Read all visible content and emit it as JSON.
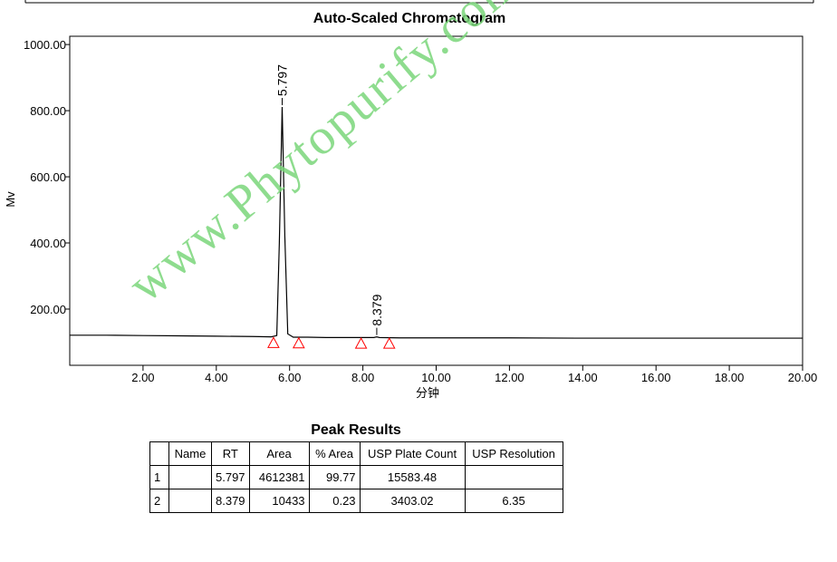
{
  "chart_data": {
    "type": "line",
    "title": "Auto-Scaled Chromatogram",
    "x_label": "分钟",
    "y_label": "Mv",
    "xlim": [
      0,
      20
    ],
    "ylim": [
      30,
      1025
    ],
    "xticks": [
      {
        "value": 2,
        "label": "2.00"
      },
      {
        "value": 4,
        "label": "4.00"
      },
      {
        "value": 6,
        "label": "6.00"
      },
      {
        "value": 8,
        "label": "8.00"
      },
      {
        "value": 10,
        "label": "10.00"
      },
      {
        "value": 12,
        "label": "12.00"
      },
      {
        "value": 14,
        "label": "14.00"
      },
      {
        "value": 16,
        "label": "16.00"
      },
      {
        "value": 18,
        "label": "18.00"
      },
      {
        "value": 20,
        "label": "20.00"
      }
    ],
    "yticks": [
      {
        "value": 200,
        "label": "200.00"
      },
      {
        "value": 400,
        "label": "400.00"
      },
      {
        "value": 600,
        "label": "600.00"
      },
      {
        "value": 800,
        "label": "800.00"
      },
      {
        "value": 1000,
        "label": "1000.00"
      }
    ],
    "x": [
      0,
      1,
      2,
      3,
      4,
      5,
      5.5,
      5.65,
      5.72,
      5.797,
      5.87,
      5.95,
      6.1,
      6.5,
      7,
      8,
      8.3,
      8.379,
      8.45,
      9,
      10,
      12,
      14,
      16,
      18,
      20
    ],
    "series": [
      {
        "color": "#000000",
        "values": [
          121,
          121,
          120,
          119,
          118,
          117,
          116,
          120,
          400,
          811,
          420,
          125,
          115,
          115,
          114,
          114,
          114,
          116,
          114,
          113,
          113,
          113,
          112,
          112,
          112,
          112
        ]
      }
    ],
    "peaks": {
      "x": [
        5.797,
        8.379
      ],
      "y": [
        811,
        116
      ],
      "labels": [
        "5.797",
        "8.379"
      ]
    },
    "markers": {
      "x": [
        5.56,
        6.25,
        7.95,
        8.72
      ],
      "y": [
        114,
        113,
        112,
        112
      ],
      "color": "#ff0000"
    }
  },
  "watermark": "www.Phytopurify.com",
  "table": {
    "title": "Peak Results",
    "header": [
      null,
      "Name",
      "RT",
      "Area",
      "% Area",
      "USP Plate Count",
      "USP Resolution"
    ],
    "rows": [
      [
        "1",
        null,
        "5.797",
        "4612381",
        "99.77",
        "15583.48",
        null
      ],
      [
        "2",
        null,
        "8.379",
        "10433",
        "0.23",
        "3403.02",
        "6.35"
      ]
    ]
  }
}
